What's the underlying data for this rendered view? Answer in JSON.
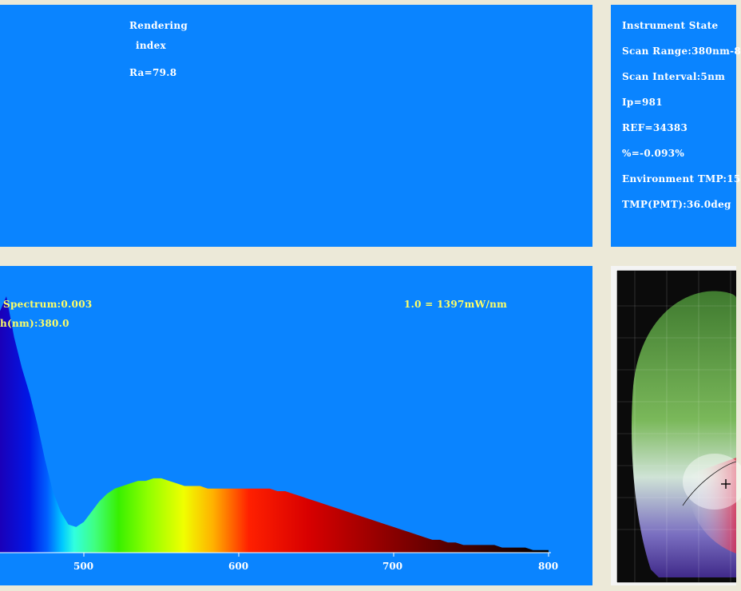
{
  "rendering": {
    "title_line1": "Rendering",
    "title_line2": "index",
    "ra": "Ra=79.8"
  },
  "instrument_state": {
    "title": "Instrument State",
    "lines": [
      "Scan Range:380nm-8",
      "Scan Interval:5nm",
      "Ip=981",
      "REF=34383",
      "%=-0.093%",
      "Environment TMP:15",
      "TMP(PMT):36.0deg"
    ]
  },
  "spectrum": {
    "spectrum_label": "Spectrum:0.003",
    "wavelength_label": "h(nm):380.0",
    "scale_label": "1.0 = 1397mW/nm",
    "x_ticks": [
      "500",
      "600",
      "700",
      "800"
    ],
    "chart_data": {
      "type": "area",
      "xlabel": "",
      "ylabel": "",
      "xlim": [
        445,
        800
      ],
      "ylim": [
        0,
        1.0
      ],
      "x": [
        445,
        450,
        455,
        460,
        465,
        470,
        475,
        480,
        485,
        490,
        495,
        500,
        505,
        510,
        515,
        520,
        525,
        530,
        535,
        540,
        545,
        550,
        555,
        560,
        565,
        570,
        575,
        580,
        585,
        590,
        595,
        600,
        605,
        610,
        615,
        620,
        625,
        630,
        635,
        640,
        645,
        650,
        655,
        660,
        665,
        670,
        675,
        680,
        685,
        690,
        695,
        700,
        705,
        710,
        715,
        720,
        725,
        730,
        735,
        740,
        745,
        750,
        755,
        760,
        765,
        770,
        775,
        780,
        785,
        790,
        795,
        800
      ],
      "y": [
        0.93,
        1.0,
        0.84,
        0.72,
        0.62,
        0.5,
        0.36,
        0.24,
        0.16,
        0.11,
        0.1,
        0.12,
        0.16,
        0.2,
        0.23,
        0.25,
        0.26,
        0.27,
        0.28,
        0.28,
        0.29,
        0.29,
        0.28,
        0.27,
        0.26,
        0.26,
        0.26,
        0.25,
        0.25,
        0.25,
        0.25,
        0.25,
        0.25,
        0.25,
        0.25,
        0.25,
        0.24,
        0.24,
        0.23,
        0.22,
        0.21,
        0.2,
        0.19,
        0.18,
        0.17,
        0.16,
        0.15,
        0.14,
        0.13,
        0.12,
        0.11,
        0.1,
        0.09,
        0.08,
        0.07,
        0.06,
        0.05,
        0.05,
        0.04,
        0.04,
        0.03,
        0.03,
        0.03,
        0.03,
        0.03,
        0.02,
        0.02,
        0.02,
        0.02,
        0.01,
        0.01,
        0.01
      ]
    }
  },
  "cie_chart": {
    "icon": "cie-chromaticity-diagram"
  }
}
